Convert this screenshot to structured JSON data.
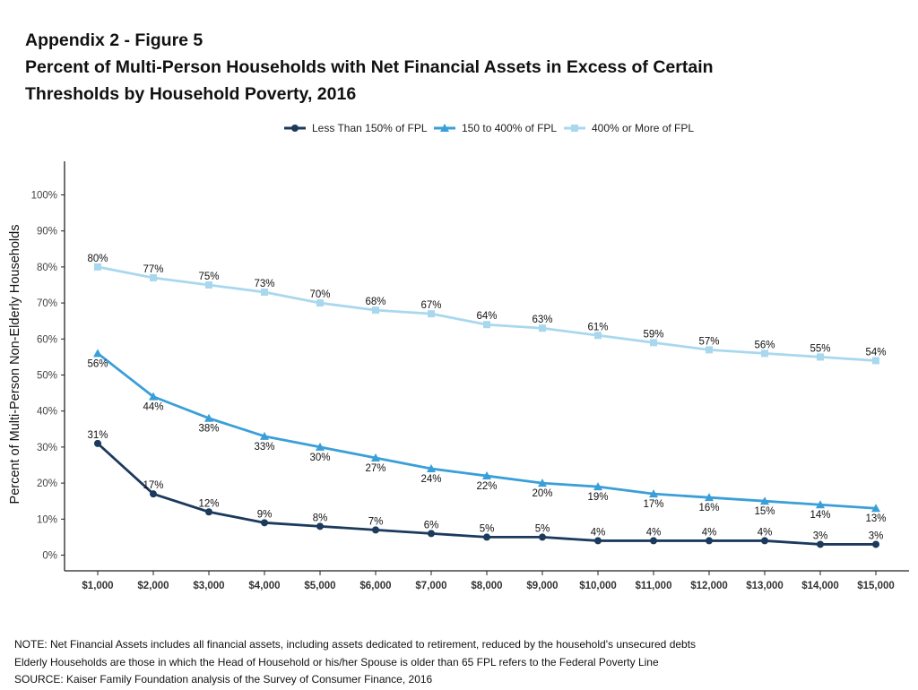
{
  "titles": {
    "line1": "Appendix 2 - Figure 5",
    "line2": "Percent of Multi-Person Households with Net Financial Assets in Excess of Certain",
    "line3": "Thresholds by Household Poverty, 2016"
  },
  "chart_data": {
    "type": "line",
    "title": "Percent of Multi-Person Households with Net Financial Assets in Excess of Certain Thresholds by Household Poverty, 2016",
    "xlabel": "",
    "ylabel": "Percent of Multi-Person Non-Elderly Households",
    "categories": [
      "$1,000",
      "$2,000",
      "$3,000",
      "$4,000",
      "$5,000",
      "$6,000",
      "$7,000",
      "$8,000",
      "$9,000",
      "$10,000",
      "$11,000",
      "$12,000",
      "$13,000",
      "$14,000",
      "$15,000"
    ],
    "y_ticks": [
      "0%",
      "10%",
      "20%",
      "30%",
      "40%",
      "50%",
      "60%",
      "70%",
      "80%",
      "90%",
      "100%"
    ],
    "ylim": [
      0,
      100
    ],
    "grid": false,
    "legend_position": "top",
    "series": [
      {
        "name": "Less Than 150% of FPL",
        "color": "#1b3a5c",
        "marker": "circle",
        "values": [
          31,
          17,
          12,
          9,
          8,
          7,
          6,
          5,
          5,
          4,
          4,
          4,
          4,
          3,
          3
        ],
        "labels": [
          "31%",
          "17%",
          "12%",
          "9%",
          "8%",
          "7%",
          "6%",
          "5%",
          "5%",
          "4%",
          "4%",
          "4%",
          "4%",
          "3%",
          "3%"
        ]
      },
      {
        "name": "150 to 400% of FPL",
        "color": "#3a9fd9",
        "marker": "triangle",
        "values": [
          56,
          44,
          38,
          33,
          30,
          27,
          24,
          22,
          20,
          19,
          17,
          16,
          15,
          14,
          13
        ],
        "labels": [
          "56%",
          "44%",
          "38%",
          "33%",
          "30%",
          "27%",
          "24%",
          "22%",
          "20%",
          "19%",
          "17%",
          "16%",
          "15%",
          "14%",
          "13%"
        ]
      },
      {
        "name": "400% or More of FPL",
        "color": "#a9d8ee",
        "marker": "square",
        "values": [
          80,
          77,
          75,
          73,
          70,
          68,
          67,
          64,
          63,
          61,
          59,
          57,
          56,
          55,
          54
        ],
        "labels": [
          "80%",
          "77%",
          "75%",
          "73%",
          "70%",
          "68%",
          "67%",
          "64%",
          "63%",
          "61%",
          "59%",
          "57%",
          "56%",
          "55%",
          "54%"
        ]
      }
    ]
  },
  "notes": {
    "note": "NOTE: Net Financial Assets includes all financial assets, including assets dedicated to retirement, reduced by the household's unsecured debts",
    "elderly": "Elderly Households are those in which the Head of Household or his/her Spouse is older than 65 FPL refers to the Federal Poverty Line",
    "source": "SOURCE: Kaiser Family Foundation analysis of the Survey of Consumer Finance, 2016"
  }
}
